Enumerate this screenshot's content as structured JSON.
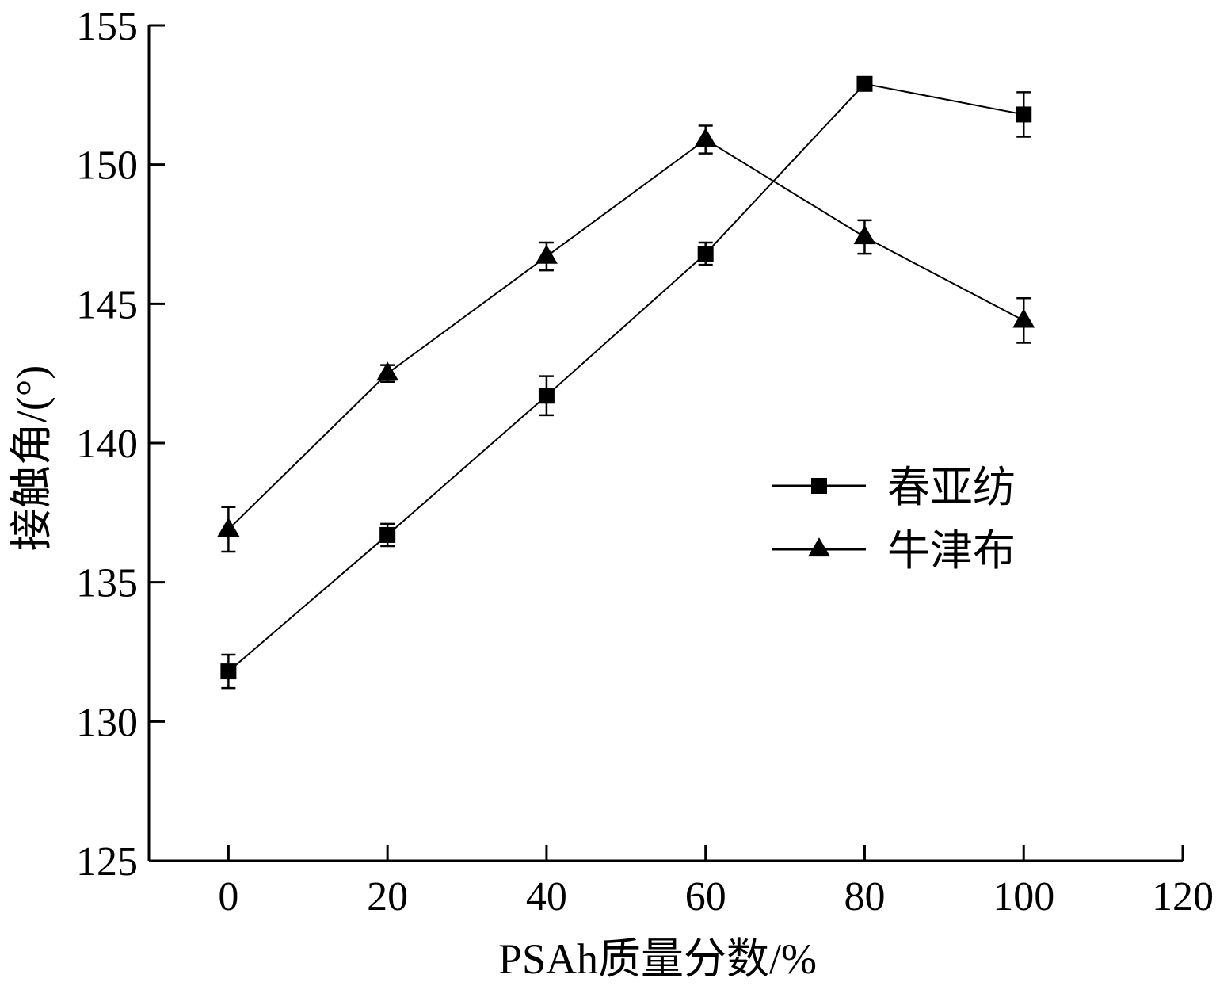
{
  "chart_data": {
    "type": "line",
    "xlabel": "PSAh质量分数/%",
    "ylabel": "接触角/(°)",
    "xlim": [
      -10,
      120
    ],
    "ylim": [
      125,
      155
    ],
    "xticks": [
      0,
      20,
      40,
      60,
      80,
      100,
      120
    ],
    "yticks": [
      125,
      130,
      135,
      140,
      145,
      150,
      155
    ],
    "legend_position": "right-middle",
    "grid": false,
    "series": [
      {
        "name": "春亚纺",
        "marker": "square",
        "x": [
          0,
          20,
          40,
          60,
          80,
          100
        ],
        "y": [
          131.8,
          136.7,
          141.7,
          146.8,
          152.9,
          151.8
        ],
        "error": [
          0.6,
          0.4,
          0.7,
          0.4,
          0.1,
          0.8
        ]
      },
      {
        "name": "牛津布",
        "marker": "triangle",
        "x": [
          0,
          20,
          40,
          60,
          80,
          100
        ],
        "y": [
          136.9,
          142.5,
          146.7,
          150.9,
          147.4,
          144.4
        ],
        "error": [
          0.8,
          0.3,
          0.5,
          0.5,
          0.6,
          0.8
        ]
      }
    ],
    "colors": {
      "line": "#000000",
      "marker": "#000000",
      "background": "#ffffff"
    }
  }
}
